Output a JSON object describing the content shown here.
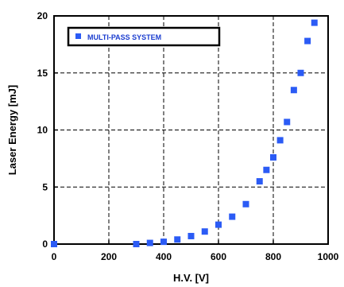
{
  "chart_data": {
    "type": "scatter",
    "xlabel": "H.V. [V]",
    "ylabel": "Laser Energy [mJ]",
    "xlim": [
      0,
      1000
    ],
    "ylim": [
      0,
      20
    ],
    "x_ticks": [
      "0",
      "200",
      "400",
      "600",
      "800",
      "1000"
    ],
    "y_ticks": [
      "0",
      "5",
      "10",
      "15",
      "20"
    ],
    "grid": true,
    "legend_position": "top-left",
    "series": [
      {
        "name": "MULTI-PASS SYSTEM",
        "color": "#2b5bf5",
        "marker": "square",
        "x": [
          0,
          300,
          350,
          400,
          450,
          500,
          550,
          600,
          650,
          700,
          750,
          775,
          800,
          825,
          850,
          875,
          900,
          925,
          950
        ],
        "y": [
          0,
          0,
          0.1,
          0.2,
          0.4,
          0.7,
          1.1,
          1.7,
          2.4,
          3.5,
          5.5,
          6.5,
          7.6,
          9.1,
          10.7,
          13.5,
          15.0,
          17.8,
          19.4
        ]
      }
    ]
  }
}
